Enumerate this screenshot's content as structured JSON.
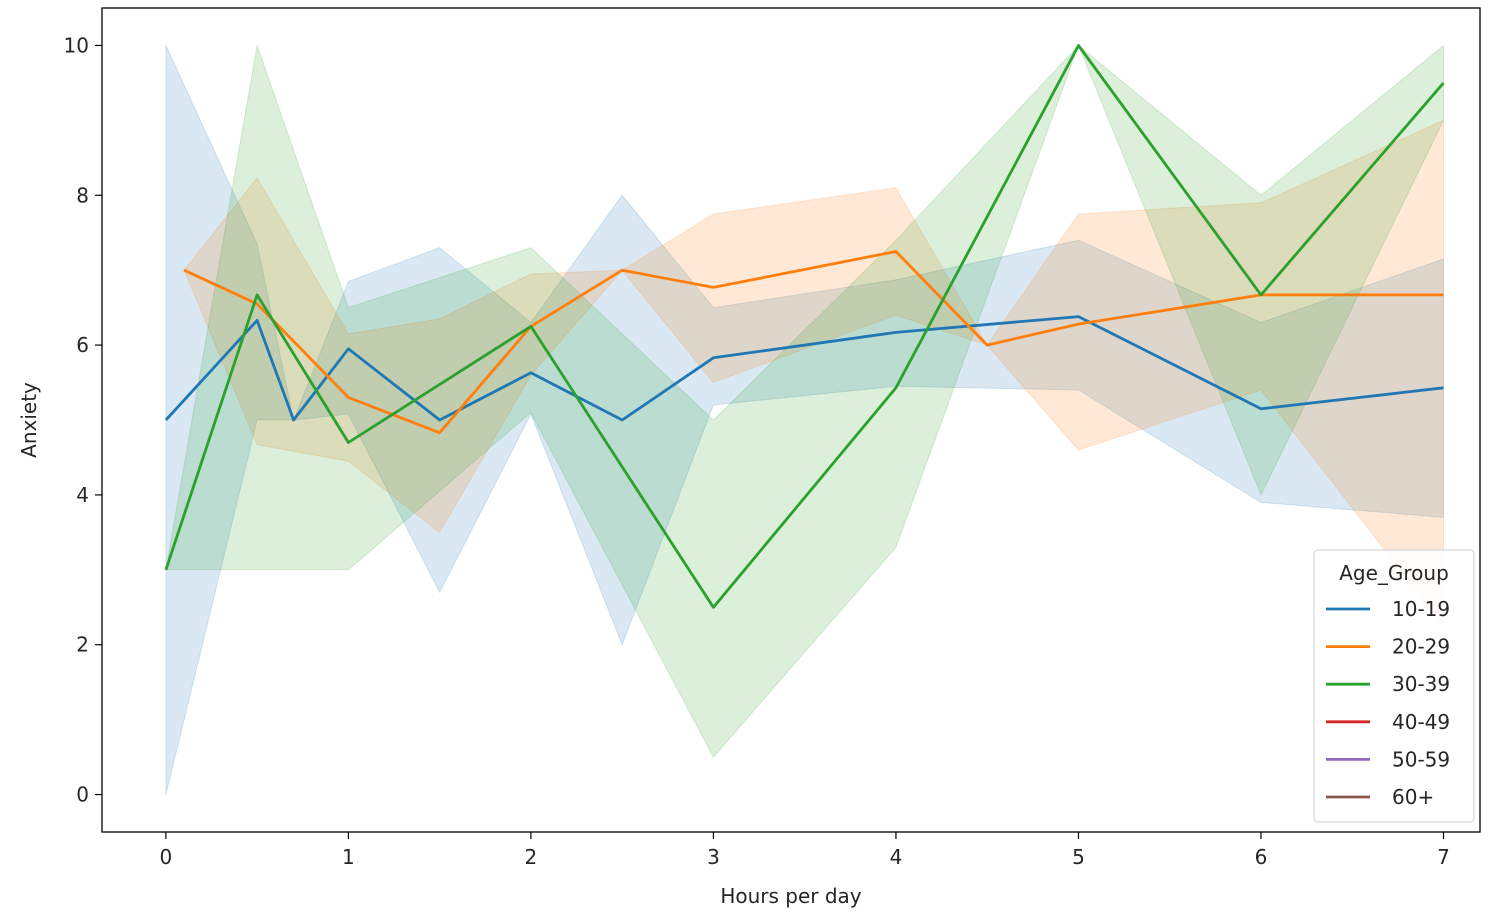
{
  "chart_data": {
    "type": "line",
    "title": "",
    "xlabel": "Hours per day",
    "ylabel": "Anxiety",
    "xlim": [
      -0.35,
      7.2
    ],
    "ylim": [
      -0.5,
      10.5
    ],
    "xticks": [
      0,
      1,
      2,
      3,
      4,
      5,
      6,
      7
    ],
    "yticks": [
      0,
      2,
      4,
      6,
      8,
      10
    ],
    "grid": false,
    "legend": {
      "title": "Age_Group",
      "placement": "bottom-right"
    },
    "series": [
      {
        "name": "10-19",
        "color": "#1f77b4",
        "x": [
          0,
          0.5,
          0.7,
          1,
          1.5,
          2,
          2.5,
          3,
          4,
          5,
          6,
          7
        ],
        "y": [
          5.0,
          6.33,
          5.0,
          5.95,
          5.0,
          5.63,
          5.0,
          5.83,
          6.17,
          6.38,
          5.15,
          5.43
        ],
        "lower": [
          0.0,
          5.0,
          5.0,
          5.08,
          2.7,
          5.08,
          2.0,
          5.2,
          5.45,
          5.4,
          3.9,
          3.7
        ],
        "upper": [
          10.0,
          7.35,
          5.0,
          6.85,
          7.3,
          6.3,
          8.0,
          6.5,
          6.87,
          7.4,
          6.3,
          7.15
        ]
      },
      {
        "name": "20-29",
        "color": "#ff7f0e",
        "x": [
          0.1,
          0.5,
          1,
          1.5,
          2,
          2.5,
          3,
          4,
          4.5,
          5,
          6,
          7
        ],
        "y": [
          7.0,
          6.55,
          5.3,
          4.83,
          6.25,
          7.0,
          6.77,
          7.25,
          6.0,
          6.28,
          6.67,
          6.67
        ],
        "lower": [
          7.0,
          4.67,
          4.45,
          3.5,
          5.6,
          7.0,
          5.5,
          6.4,
          6.0,
          4.6,
          5.4,
          2.25
        ],
        "upper": [
          7.0,
          8.23,
          6.15,
          6.35,
          6.95,
          7.0,
          7.75,
          8.1,
          6.0,
          7.75,
          7.9,
          9.0
        ]
      },
      {
        "name": "30-39",
        "color": "#2ca02c",
        "x": [
          0,
          0.5,
          1,
          2,
          3,
          4,
          5,
          6,
          7
        ],
        "y": [
          3.0,
          6.67,
          4.7,
          6.25,
          2.5,
          5.43,
          10.0,
          6.67,
          9.5
        ],
        "lower": [
          3.0,
          3.0,
          3.0,
          5.1,
          0.5,
          3.3,
          10.0,
          4.0,
          9.0
        ],
        "upper": [
          3.0,
          10.0,
          6.5,
          7.3,
          5.0,
          7.4,
          10.0,
          8.0,
          10.0
        ]
      },
      {
        "name": "40-49",
        "color": "#d62728",
        "x": [],
        "y": [],
        "lower": [],
        "upper": []
      },
      {
        "name": "50-59",
        "color": "#9467bd",
        "x": [],
        "y": [],
        "lower": [],
        "upper": []
      },
      {
        "name": "60+",
        "color": "#8c564b",
        "x": [],
        "y": [],
        "lower": [],
        "upper": []
      }
    ]
  }
}
